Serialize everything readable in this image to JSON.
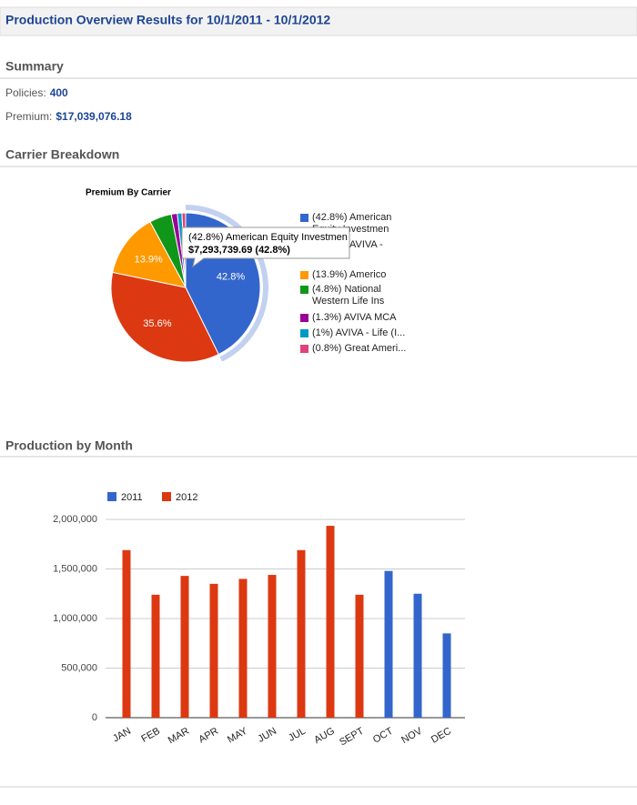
{
  "header": {
    "title": "Production Overview Results for 10/1/2011 - 10/1/2012"
  },
  "summary": {
    "heading": "Summary",
    "policies_label": "Policies:",
    "policies": "400",
    "premium_label": "Premium:",
    "premium": "$17,039,076.18"
  },
  "carrier_heading": "Carrier Breakdown",
  "production_heading": "Production by Month",
  "chart_data": [
    {
      "type": "pie",
      "title": "Premium By Carrier",
      "categories": [
        "(42.8%) American Equity Investmen",
        "(35.6%) AVIVA -",
        "(13.9%) Americo",
        "(4.8%) National Western Life Ins",
        "(1.3%) AVIVA MCA",
        "(1%) AVIVA - Life (I...",
        "(0.8%) Great Ameri..."
      ],
      "values": [
        42.8,
        35.6,
        13.9,
        4.8,
        1.3,
        1,
        0.8
      ],
      "value_labels": [
        "42.8%",
        "35.6%",
        "13.9%",
        null,
        null,
        null,
        null
      ],
      "colors": [
        "#3366cc",
        "#dc3912",
        "#ff9900",
        "#109618",
        "#990099",
        "#0099c6",
        "#dd4477"
      ],
      "legend": "right",
      "tooltip": {
        "title": "(42.8%) American Equity Investmen",
        "text": "$7,293,739.69 (42.8%)"
      }
    },
    {
      "type": "bar",
      "categories": [
        "JAN",
        "FEB",
        "MAR",
        "APR",
        "MAY",
        "JUN",
        "JUL",
        "AUG",
        "SEPT",
        "OCT",
        "NOV",
        "DEC"
      ],
      "series": [
        {
          "name": "2011",
          "color": "#3366cc",
          "values": [
            null,
            null,
            null,
            null,
            null,
            null,
            null,
            null,
            null,
            1480000,
            1250000,
            850000
          ]
        },
        {
          "name": "2012",
          "color": "#dc3912",
          "values": [
            1690000,
            1240000,
            1430000,
            1350000,
            1400000,
            1440000,
            1690000,
            1935000,
            1240000,
            null,
            null,
            null
          ]
        }
      ],
      "ylim": [
        0,
        2000000
      ],
      "yticks": [
        0,
        {
          "value": 500000,
          "label": "500,000"
        },
        {
          "value": 1000000,
          "label": "1,000,000"
        },
        {
          "value": 1500000,
          "label": "1,500,000"
        },
        {
          "value": 2000000,
          "label": "2,000,000"
        }
      ],
      "grid": true,
      "legend": "top"
    }
  ]
}
